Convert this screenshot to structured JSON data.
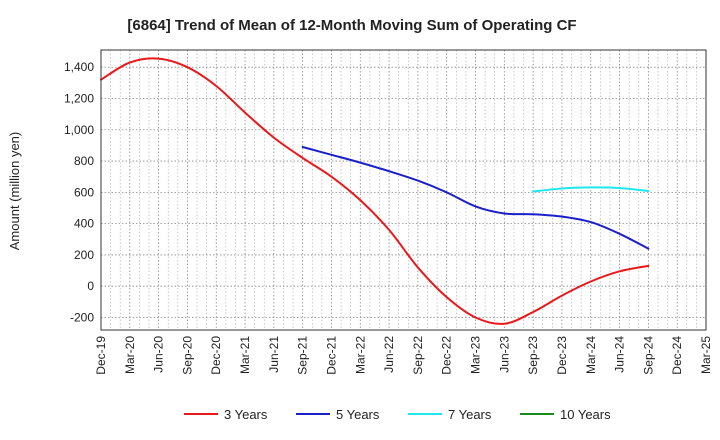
{
  "chart_data": {
    "type": "line",
    "title": "[6864]  Trend of Mean of 12-Month Moving Sum of Operating CF",
    "xlabel": "",
    "ylabel": "Amount (million yen)",
    "ylim": [
      -280,
      1510
    ],
    "yticks": [
      -200,
      0,
      200,
      400,
      600,
      800,
      1000,
      1200,
      1400
    ],
    "ytick_labels": [
      "-200",
      "0",
      "200",
      "400",
      "600",
      "800",
      "1,000",
      "1,200",
      "1,400"
    ],
    "categories": [
      "Dec-19",
      "Mar-20",
      "Jun-20",
      "Sep-20",
      "Dec-20",
      "Mar-21",
      "Jun-21",
      "Sep-21",
      "Dec-21",
      "Mar-22",
      "Jun-22",
      "Sep-22",
      "Dec-22",
      "Mar-23",
      "Jun-23",
      "Sep-23",
      "Dec-23",
      "Mar-24",
      "Jun-24",
      "Sep-24",
      "Dec-24",
      "Mar-25"
    ],
    "grid": true,
    "legend_position": "bottom",
    "series": [
      {
        "name": "3 Years",
        "color": "#e8191b",
        "values": [
          1320,
          1430,
          1455,
          1400,
          1280,
          1110,
          950,
          820,
          700,
          550,
          360,
          120,
          -70,
          -200,
          -240,
          -165,
          -60,
          30,
          95,
          130,
          null,
          null
        ]
      },
      {
        "name": "5 Years",
        "color": "#1a1fc9",
        "values": [
          null,
          null,
          null,
          null,
          null,
          null,
          null,
          890,
          840,
          790,
          735,
          675,
          600,
          510,
          465,
          460,
          445,
          410,
          335,
          240,
          null,
          null
        ]
      },
      {
        "name": "7 Years",
        "color": "#1ee8ee",
        "values": [
          null,
          null,
          null,
          null,
          null,
          null,
          null,
          null,
          null,
          null,
          null,
          null,
          null,
          null,
          null,
          605,
          625,
          632,
          628,
          608,
          null,
          null
        ]
      },
      {
        "name": "10 Years",
        "color": "#1a8a1a",
        "values": [
          null,
          null,
          null,
          null,
          null,
          null,
          null,
          null,
          null,
          null,
          null,
          null,
          null,
          null,
          null,
          null,
          null,
          null,
          null,
          null,
          null,
          null
        ]
      }
    ]
  }
}
